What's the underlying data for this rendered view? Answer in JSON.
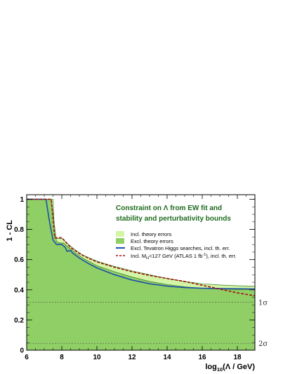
{
  "chart_data": {
    "type": "area",
    "title_lines": [
      "Constraint on Λ from EW fit and",
      "stability and perturbativity bounds"
    ],
    "xlabel": "log",
    "xlabel_sub": "10",
    "xlabel_tail": "(Λ / GeV)",
    "ylabel": "1 - CL",
    "xlim": [
      6,
      19
    ],
    "ylim": [
      0,
      1.03
    ],
    "xticks": [
      6,
      8,
      10,
      12,
      14,
      16,
      18
    ],
    "yticks": [
      0,
      0.2,
      0.4,
      0.6,
      0.8,
      1
    ],
    "grid": false,
    "legend_position": "top-right",
    "colors": {
      "incl_band": "#d2f5a6",
      "excl_band": "#8fcf66",
      "tevatron_line": "#1f4fa8",
      "atlas_line": "#a01010",
      "frame": "#000000"
    },
    "reference_lines": [
      {
        "y": 0.3173,
        "label": "1σ"
      },
      {
        "y": 0.0455,
        "label": "2σ"
      }
    ],
    "series": [
      {
        "name": "Incl. theory errors",
        "kind": "band",
        "x": [
          6,
          7.0,
          7.5,
          7.6,
          7.8,
          8.0,
          8.3,
          8.7,
          9.2,
          10,
          11,
          12,
          13,
          14,
          15,
          16,
          17,
          18,
          19
        ],
        "values": [
          1,
          1,
          1,
          0.74,
          0.74,
          0.74,
          0.71,
          0.67,
          0.63,
          0.59,
          0.555,
          0.525,
          0.5,
          0.475,
          0.455,
          0.44,
          0.432,
          0.427,
          0.424
        ]
      },
      {
        "name": "Excl. theory errors",
        "kind": "band",
        "x": [
          6,
          7.0,
          7.4,
          7.7,
          7.9,
          8.1,
          8.3,
          8.7,
          9.2,
          10,
          11,
          12,
          13,
          14,
          15,
          16,
          17,
          18,
          19
        ],
        "values": [
          1,
          1,
          1,
          0.72,
          0.71,
          0.71,
          0.69,
          0.65,
          0.61,
          0.56,
          0.52,
          0.485,
          0.455,
          0.435,
          0.42,
          0.41,
          0.405,
          0.402,
          0.4
        ]
      },
      {
        "name": "Excl. Tevatron Higgs searches, incl. th. err.",
        "kind": "line",
        "x": [
          6,
          7.1,
          7.3,
          7.5,
          7.7,
          8.0,
          8.1,
          8.2,
          8.3,
          8.5,
          8.6,
          9.0,
          9.5,
          10,
          11,
          12,
          13,
          14,
          15,
          16,
          17,
          18,
          19
        ],
        "values": [
          1,
          1,
          0.85,
          0.73,
          0.7,
          0.7,
          0.69,
          0.68,
          0.655,
          0.66,
          0.645,
          0.61,
          0.575,
          0.545,
          0.5,
          0.465,
          0.44,
          0.425,
          0.415,
          0.41,
          0.408,
          0.407,
          0.406
        ]
      },
      {
        "name": "Incl. M_H<127 GeV (ATLAS 1 fb⁻¹), incl. th. err.",
        "kind": "dashed-line",
        "x": [
          6,
          7.4,
          7.6,
          8.0,
          8.2,
          8.5,
          9.0,
          9.5,
          10,
          11,
          12,
          13,
          14,
          15,
          16,
          17,
          18,
          19
        ],
        "values": [
          1,
          1,
          0.745,
          0.745,
          0.72,
          0.68,
          0.64,
          0.61,
          0.585,
          0.55,
          0.52,
          0.495,
          0.475,
          0.455,
          0.43,
          0.405,
          0.38,
          0.36
        ]
      }
    ],
    "legend": [
      {
        "label": "Incl. theory errors",
        "swatch": "fill-light"
      },
      {
        "label": "Excl. theory errors",
        "swatch": "fill-dark"
      },
      {
        "label": "Excl. Tevatron Higgs searches, incl. th. err.",
        "swatch": "line-blue"
      },
      {
        "label_main": "Incl. M",
        "label_sub": "H",
        "label_mid": "<127 GeV (ATLAS 1 fb",
        "label_sup": "-1",
        "label_end": "), incl. th. err.",
        "swatch": "line-dashed-red"
      }
    ]
  }
}
